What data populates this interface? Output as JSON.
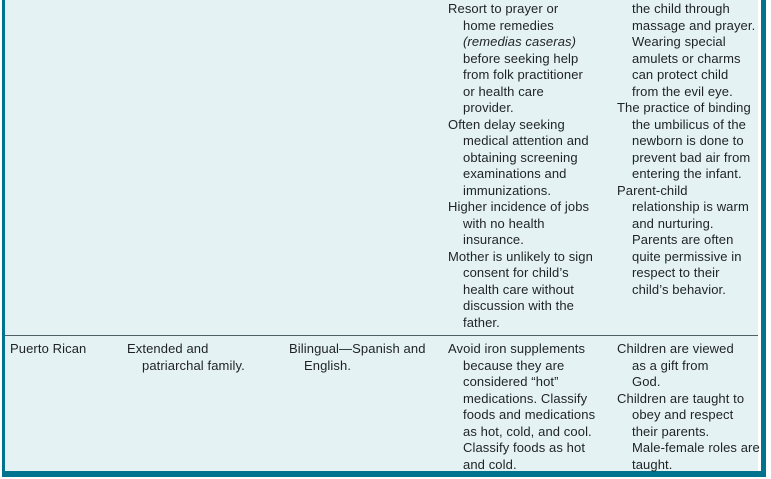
{
  "colors": {
    "border_teal": "#00748e",
    "table_background": "#e4f2f3",
    "row_divider": "#4c6066",
    "text_ink": "#1e2224"
  },
  "table": {
    "rows": [
      {
        "culture": "",
        "family_lines": [],
        "language_lines": [],
        "health_lines": [
          {
            "t": "Resort to prayer or"
          },
          {
            "t": "home remedies",
            "c": 1
          },
          {
            "t": "(remedias caseras)",
            "c": 1,
            "i": 1
          },
          {
            "t": "before seeking help",
            "c": 1
          },
          {
            "t": "from folk practitioner",
            "c": 1
          },
          {
            "t": "or health care",
            "c": 1
          },
          {
            "t": "provider.",
            "c": 1
          },
          {
            "t": "Often delay seeking"
          },
          {
            "t": "medical attention and",
            "c": 1
          },
          {
            "t": "obtaining screening",
            "c": 1
          },
          {
            "t": "examinations and",
            "c": 1
          },
          {
            "t": "immunizations.",
            "c": 1
          },
          {
            "t": "Higher incidence of jobs"
          },
          {
            "t": "with no health",
            "c": 1
          },
          {
            "t": "insurance.",
            "c": 1
          },
          {
            "t": "Mother is unlikely to sign"
          },
          {
            "t": "consent for child’s",
            "c": 1
          },
          {
            "t": "health care without",
            "c": 1
          },
          {
            "t": "discussion with the",
            "c": 1
          },
          {
            "t": "father.",
            "c": 1
          }
        ],
        "parenting_lines": [
          {
            "t": "the child through",
            "c": 1
          },
          {
            "t": "massage and prayer.",
            "c": 1
          },
          {
            "t": "Wearing special",
            "c": 1
          },
          {
            "t": "amulets or charms",
            "c": 1
          },
          {
            "t": "can protect child",
            "c": 1
          },
          {
            "t": "from the evil eye.",
            "c": 1
          },
          {
            "t": "The practice of binding"
          },
          {
            "t": "the umbilicus of the",
            "c": 1
          },
          {
            "t": "newborn is done to",
            "c": 1
          },
          {
            "t": "prevent bad air from",
            "c": 1
          },
          {
            "t": "entering the infant.",
            "c": 1
          },
          {
            "t": "Parent-child"
          },
          {
            "t": "relationship is warm",
            "c": 1
          },
          {
            "t": "and nurturing.",
            "c": 1
          },
          {
            "t": "Parents are often",
            "c": 1
          },
          {
            "t": "quite permissive in",
            "c": 1
          },
          {
            "t": "respect to their",
            "c": 1
          },
          {
            "t": "child’s behavior.",
            "c": 1
          }
        ]
      },
      {
        "culture": "Puerto Rican",
        "family_lines": [
          {
            "t": "Extended and"
          },
          {
            "t": "patriarchal family.",
            "c": 1
          }
        ],
        "language_lines": [
          {
            "t": "Bilingual—Spanish and"
          },
          {
            "t": "English.",
            "c": 1
          }
        ],
        "health_lines": [
          {
            "t": "Avoid iron supplements"
          },
          {
            "t": "because they are",
            "c": 1
          },
          {
            "t": "considered “hot”",
            "c": 1
          },
          {
            "t": "medications. Classify",
            "c": 1
          },
          {
            "t": "foods and medications",
            "c": 1
          },
          {
            "t": "as hot, cold, and cool.",
            "c": 1
          },
          {
            "t": "Classify foods as hot",
            "c": 1
          },
          {
            "t": "and cold.",
            "c": 1
          }
        ],
        "parenting_lines": [
          {
            "t": "Children are viewed"
          },
          {
            "t": "as a gift from",
            "c": 1
          },
          {
            "t": "God.",
            "c": 1
          },
          {
            "t": "Children are taught to"
          },
          {
            "t": "obey and respect",
            "c": 1
          },
          {
            "t": "their parents.",
            "c": 1
          },
          {
            "t": "Male-female roles are",
            "c": 1
          },
          {
            "t": "taught.",
            "c": 1
          }
        ]
      }
    ]
  }
}
